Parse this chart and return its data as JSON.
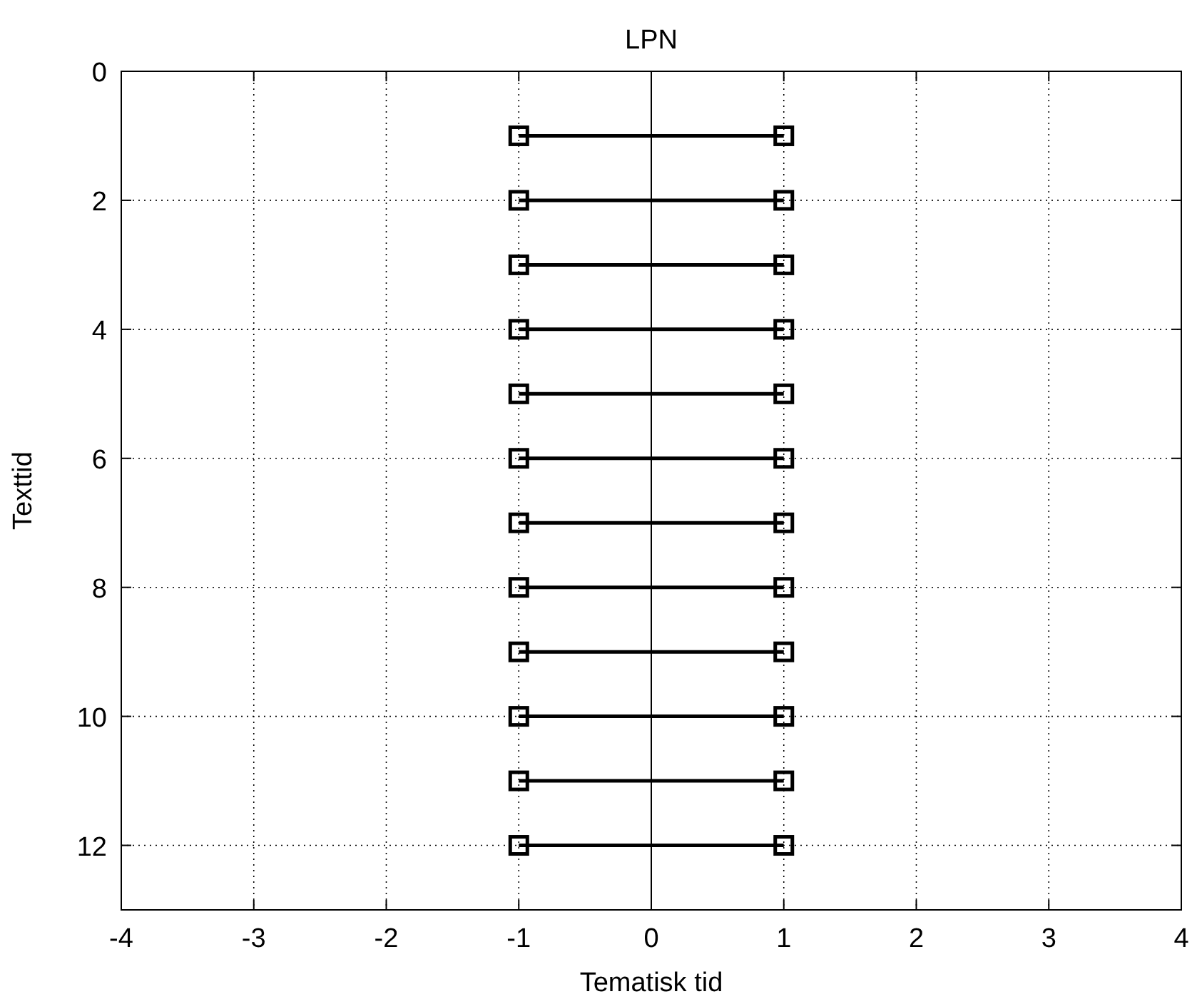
{
  "chart_data": {
    "type": "line",
    "title": "LPN",
    "xlabel": "Tematisk tid",
    "ylabel": "Texttid",
    "x": [
      -1,
      1
    ],
    "xlim": [
      -4,
      4
    ],
    "xticks": [
      -4,
      -3,
      -2,
      -1,
      0,
      1,
      2,
      3,
      4
    ],
    "ylim": [
      13,
      0
    ],
    "yticks": [
      0,
      2,
      4,
      6,
      8,
      10,
      12
    ],
    "grid": true,
    "marker": "square",
    "line_style": "solid",
    "ref_lines": [
      {
        "axis": "x",
        "value": 0,
        "color": "#000000",
        "line_style": "solid"
      }
    ],
    "series": [
      {
        "values": [
          1,
          1
        ],
        "color": "#000000"
      },
      {
        "values": [
          2,
          2
        ],
        "color": "#000000"
      },
      {
        "values": [
          3,
          3
        ],
        "color": "#000000"
      },
      {
        "values": [
          4,
          4
        ],
        "color": "#000000"
      },
      {
        "values": [
          5,
          5
        ],
        "color": "#000000"
      },
      {
        "values": [
          6,
          6
        ],
        "color": "#000000"
      },
      {
        "values": [
          7,
          7
        ],
        "color": "#000000"
      },
      {
        "values": [
          8,
          8
        ],
        "color": "#000000"
      },
      {
        "values": [
          9,
          9
        ],
        "color": "#000000"
      },
      {
        "values": [
          10,
          10
        ],
        "color": "#000000"
      },
      {
        "values": [
          11,
          11
        ],
        "color": "#000000"
      },
      {
        "values": [
          12,
          12
        ],
        "color": "#000000"
      }
    ]
  }
}
